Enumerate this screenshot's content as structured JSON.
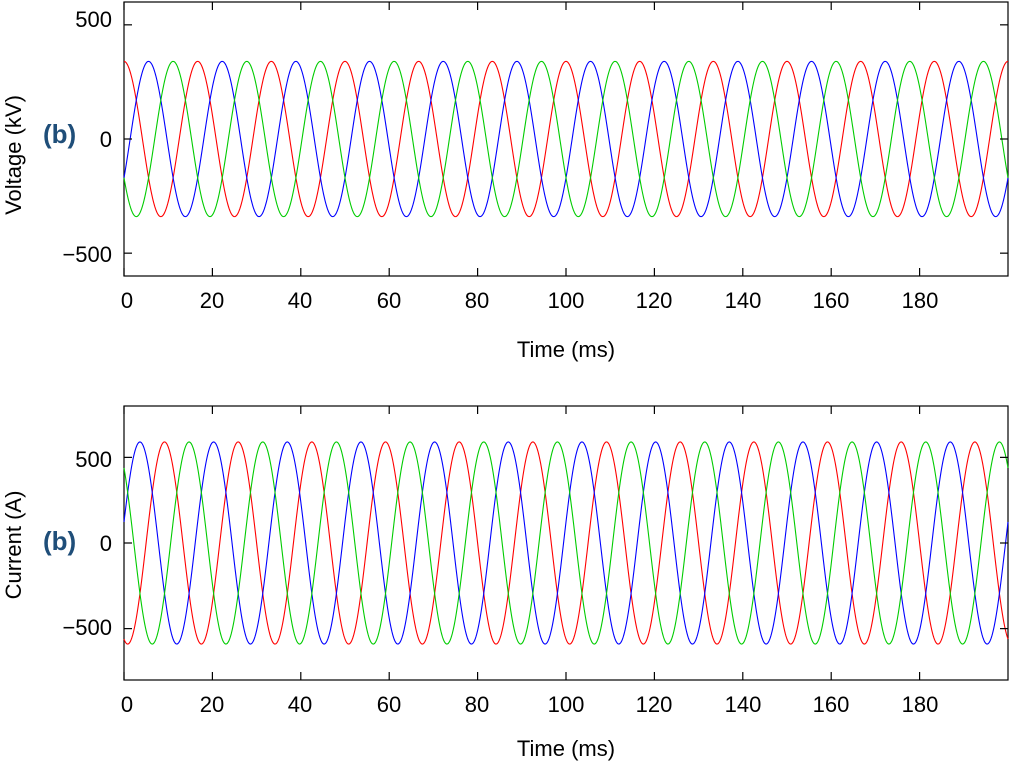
{
  "chart_data": [
    {
      "type": "line",
      "panel_tag": "(b)",
      "xlabel": "Time (ms)",
      "ylabel": "Voltage (kV)",
      "xlim": [
        0,
        200
      ],
      "ylim": [
        -600,
        600
      ],
      "x_ticks": [
        "0",
        "20",
        "40",
        "60",
        "80",
        "100",
        "120",
        "140",
        "160",
        "180"
      ],
      "y_ticks": [
        "500",
        "0",
        "−500"
      ],
      "signal": "three-phase sinusoid, 60 Hz, amplitude 340 kV",
      "series": [
        {
          "color": "#ff0000",
          "amplitude": 340,
          "frequency_hz": 60,
          "phase_deg": 90
        },
        {
          "color": "#0000ff",
          "amplitude": 340,
          "frequency_hz": 60,
          "phase_deg": -30
        },
        {
          "color": "#00cc00",
          "amplitude": 340,
          "frequency_hz": 60,
          "phase_deg": 210
        }
      ]
    },
    {
      "type": "line",
      "panel_tag": "(b)",
      "xlabel": "Time (ms)",
      "ylabel": "Current (A)",
      "xlim": [
        0,
        200
      ],
      "ylim": [
        -800,
        800
      ],
      "x_ticks": [
        "0",
        "20",
        "40",
        "60",
        "80",
        "100",
        "120",
        "140",
        "160",
        "180"
      ],
      "y_ticks": [
        "500",
        "0",
        "−500"
      ],
      "signal": "three-phase sinusoid, 60 Hz, amplitude 590 A",
      "series": [
        {
          "color": "#ff0000",
          "amplitude": 590,
          "frequency_hz": 60,
          "phase_deg": 252
        },
        {
          "color": "#0000ff",
          "amplitude": 590,
          "frequency_hz": 60,
          "phase_deg": 12
        },
        {
          "color": "#00cc00",
          "amplitude": 590,
          "frequency_hz": 60,
          "phase_deg": 132
        }
      ]
    }
  ]
}
